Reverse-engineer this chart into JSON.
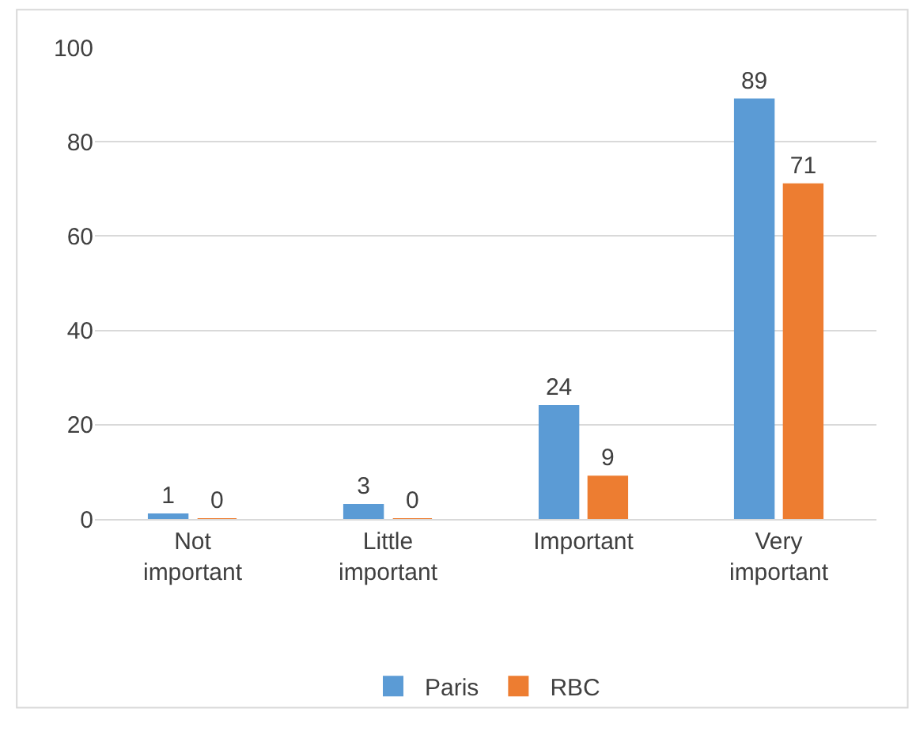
{
  "chart_data": {
    "type": "bar",
    "categories": [
      "Not important",
      "Little important",
      "Important",
      "Very important"
    ],
    "series": [
      {
        "name": "Paris",
        "color": "#5b9bd5",
        "values": [
          1,
          3,
          24,
          89
        ]
      },
      {
        "name": "RBC",
        "color": "#ed7d31",
        "values": [
          0,
          0,
          9,
          71
        ]
      }
    ],
    "ylim": [
      0,
      100
    ],
    "yticks": [
      0,
      20,
      40,
      60,
      80,
      100
    ],
    "grid": "y",
    "legend": "bottom",
    "data_labels": true
  }
}
